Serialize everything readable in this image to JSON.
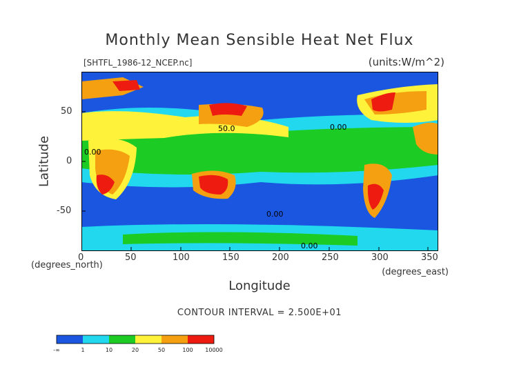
{
  "title": "Monthly Mean Sensible Heat Net Flux",
  "file_label": "[SHTFL_1986-12_NCEP.nc]",
  "units_label": "(units:W/m^2)",
  "axes": {
    "ylabel": "Latitude",
    "xlabel": "Longitude",
    "y_unit_label": "(degrees_north)",
    "x_unit_label": "(degrees_east)",
    "x_ticks": [
      "0",
      "50",
      "100",
      "150",
      "200",
      "250",
      "300",
      "350"
    ],
    "y_ticks": [
      "50",
      "0",
      "-50"
    ]
  },
  "contour_interval": "CONTOUR INTERVAL = 2.500E+01",
  "colorbar": {
    "labels": [
      "-∞",
      "1",
      "10",
      "20",
      "50",
      "100",
      "10000"
    ],
    "colors": [
      "#1a56e0",
      "#22d8ee",
      "#1ccc24",
      "#fff23a",
      "#f4a010",
      "#ee1c10"
    ]
  },
  "contour_labels": [
    "0.00",
    "50.0",
    "0.00",
    "0.00",
    "0.00"
  ]
}
